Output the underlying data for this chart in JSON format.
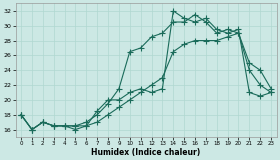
{
  "xlabel": "Humidex (Indice chaleur)",
  "bg_color": "#cce8e4",
  "grid_color": "#b0d8d0",
  "line_color": "#1a6b5a",
  "xlim": [
    -0.5,
    23.5
  ],
  "ylim": [
    15.0,
    33.0
  ],
  "xticks": [
    0,
    1,
    2,
    3,
    4,
    5,
    6,
    7,
    8,
    9,
    10,
    11,
    12,
    13,
    14,
    15,
    16,
    17,
    18,
    19,
    20,
    21,
    22,
    23
  ],
  "yticks": [
    16,
    18,
    20,
    22,
    24,
    26,
    28,
    30,
    32
  ],
  "line1_x": [
    0,
    1,
    2,
    3,
    4,
    5,
    6,
    7,
    8,
    9,
    10,
    11,
    12,
    13,
    14,
    15,
    16,
    17,
    18,
    19,
    20,
    21,
    22,
    23
  ],
  "line1_y": [
    18,
    16,
    17,
    16.5,
    16.5,
    16.5,
    16.5,
    17.0,
    18.0,
    19.0,
    20.0,
    21.0,
    22.0,
    23.0,
    26.5,
    27.5,
    28.0,
    28.0,
    28.0,
    28.5,
    29.0,
    25.0,
    24.0,
    21.5
  ],
  "line2_x": [
    0,
    1,
    2,
    3,
    4,
    5,
    6,
    7,
    8,
    9,
    10,
    11,
    12,
    13,
    14,
    15,
    16,
    17,
    18,
    19,
    20,
    21,
    22,
    23
  ],
  "line2_y": [
    18,
    16,
    17,
    16.5,
    16.5,
    16.5,
    17.0,
    18.0,
    19.5,
    21.5,
    26.5,
    27.0,
    28.5,
    29.0,
    30.5,
    30.5,
    31.5,
    30.5,
    29.0,
    29.5,
    29.0,
    24.0,
    22.0,
    21.0
  ],
  "line3_x": [
    0,
    1,
    2,
    3,
    4,
    5,
    6,
    7,
    8,
    9,
    10,
    11,
    12,
    13,
    14,
    15,
    16,
    17,
    18,
    19,
    20,
    21,
    22,
    23
  ],
  "line3_y": [
    18,
    16,
    17,
    16.5,
    16.5,
    16.0,
    16.5,
    18.5,
    20.0,
    20.0,
    21.0,
    21.5,
    21.0,
    21.5,
    32.0,
    31.0,
    30.5,
    31.0,
    29.5,
    29.0,
    29.5,
    21.0,
    20.5,
    21.0
  ]
}
